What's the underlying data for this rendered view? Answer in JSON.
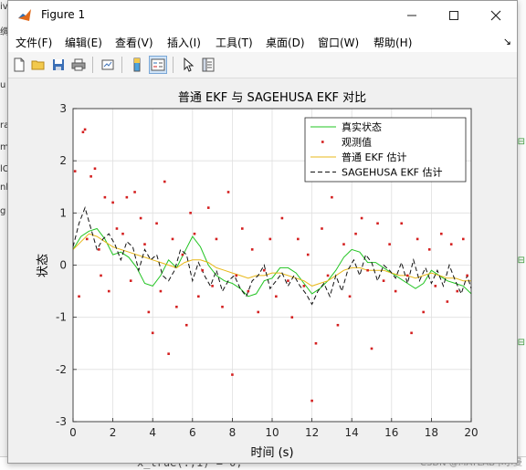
{
  "window": {
    "title": "Figure 1"
  },
  "menu": {
    "items": [
      "文件(F)",
      "编辑(E)",
      "查看(V)",
      "插入(I)",
      "工具(T)",
      "桌面(D)",
      "窗口(W)",
      "帮助(H)"
    ]
  },
  "toolbar": {
    "buttons": [
      "new-figure-icon",
      "open-folder-icon",
      "save-icon",
      "print-icon",
      "link-icon",
      "colorbar-icon",
      "legend-icon",
      "pointer-icon",
      "property-inspector-icon"
    ]
  },
  "background": {
    "code_text": "x_true(:,1) = 0;",
    "watermark": "CSDN @MATLAB卡尔曼",
    "left_chars": [
      "iv",
      "绸",
      "u",
      "ra",
      "m",
      "lC",
      "nk",
      "g"
    ]
  },
  "chart_data": {
    "type": "line",
    "title": "普通 EKF 与 SAGEHUSA EKF 对比",
    "xlabel": "时间 (s)",
    "ylabel": "状态",
    "xlim": [
      0,
      20
    ],
    "ylim": [
      -3,
      3
    ],
    "xticks": [
      0,
      2,
      4,
      6,
      8,
      10,
      12,
      14,
      16,
      18,
      20
    ],
    "yticks": [
      -3,
      -2,
      -1,
      0,
      1,
      2,
      3
    ],
    "grid": true,
    "legend_position": "top-right",
    "series": [
      {
        "name": "真实状态",
        "style": "line",
        "color": "#22c422",
        "x": [
          0,
          0.4,
          0.8,
          1.2,
          1.6,
          2,
          2.4,
          2.8,
          3.2,
          3.6,
          4,
          4.4,
          4.8,
          5.2,
          5.6,
          6,
          6.4,
          6.8,
          7.2,
          7.6,
          8,
          8.4,
          8.8,
          9.2,
          9.6,
          10,
          10.4,
          10.8,
          11.2,
          11.6,
          12,
          12.4,
          12.8,
          13.2,
          13.6,
          14,
          14.4,
          14.8,
          15.2,
          15.6,
          16,
          16.4,
          16.8,
          17.2,
          17.6,
          18,
          18.4,
          18.8,
          19.2,
          19.6,
          20
        ],
        "y": [
          0.3,
          0.55,
          0.65,
          0.7,
          0.5,
          0.2,
          0.25,
          0.15,
          -0.05,
          -0.35,
          -0.4,
          -0.2,
          0.1,
          -0.05,
          0.25,
          0.55,
          0.35,
          0.0,
          -0.2,
          -0.3,
          -0.35,
          -0.45,
          -0.6,
          -0.55,
          -0.3,
          -0.25,
          -0.05,
          -0.05,
          -0.15,
          -0.35,
          -0.55,
          -0.45,
          -0.3,
          -0.1,
          0.15,
          0.3,
          0.25,
          0.05,
          0.05,
          -0.05,
          -0.15,
          -0.25,
          -0.35,
          -0.45,
          -0.35,
          -0.1,
          -0.2,
          -0.3,
          -0.35,
          -0.4,
          -0.55
        ]
      },
      {
        "name": "观测值",
        "style": "dots",
        "color": "#d42020",
        "x": [
          0.1,
          0.3,
          0.5,
          0.6,
          0.7,
          0.9,
          1.1,
          1.3,
          1.4,
          1.6,
          1.8,
          2.0,
          2.2,
          2.5,
          2.7,
          2.9,
          3.1,
          3.4,
          3.6,
          3.8,
          4.0,
          4.2,
          4.4,
          4.6,
          4.8,
          5.0,
          5.2,
          5.5,
          5.7,
          5.9,
          6.1,
          6.3,
          6.5,
          6.8,
          7.0,
          7.2,
          7.5,
          7.8,
          8.0,
          8.2,
          8.5,
          8.8,
          9.0,
          9.3,
          9.6,
          9.9,
          10.2,
          10.5,
          10.8,
          11.0,
          11.3,
          11.6,
          11.8,
          12.0,
          12.2,
          12.5,
          12.8,
          13.0,
          13.3,
          13.6,
          13.9,
          14.2,
          14.5,
          14.8,
          15.0,
          15.3,
          15.6,
          15.9,
          16.2,
          16.5,
          16.8,
          17.0,
          17.3,
          17.6,
          17.9,
          18.2,
          18.5,
          18.8,
          19.0,
          19.3,
          19.6,
          19.8
        ],
        "y": [
          1.8,
          -0.6,
          2.55,
          2.6,
          0.5,
          1.7,
          1.85,
          0.3,
          -0.2,
          1.3,
          -0.5,
          1.2,
          0.7,
          0.6,
          1.3,
          -0.3,
          1.4,
          0.9,
          0.4,
          -0.9,
          -1.3,
          0.8,
          -0.5,
          1.6,
          -1.7,
          0.5,
          -0.8,
          0.2,
          -1.15,
          1.0,
          0.6,
          -0.6,
          -0.1,
          1.1,
          -0.4,
          0.5,
          -0.8,
          1.4,
          -2.1,
          -0.2,
          0.7,
          -0.5,
          0.3,
          -0.9,
          -0.1,
          0.5,
          -0.6,
          0.9,
          -0.3,
          -1.0,
          0.5,
          -0.4,
          0.2,
          -2.6,
          -1.5,
          0.7,
          -0.2,
          1.3,
          -1.15,
          0.4,
          -0.6,
          0.6,
          0.9,
          -0.1,
          -1.6,
          0.8,
          -0.3,
          0.4,
          -0.5,
          0.8,
          -0.2,
          -1.3,
          0.5,
          -0.9,
          0.3,
          -0.4,
          0.6,
          -0.7,
          0.4,
          -0.5,
          0.5,
          -0.2
        ]
      },
      {
        "name": "普通 EKF 估计",
        "style": "line",
        "color": "#e8b818",
        "x": [
          0,
          0.4,
          0.8,
          1.2,
          1.6,
          2,
          2.4,
          2.8,
          3.2,
          3.6,
          4,
          4.4,
          4.8,
          5.2,
          5.6,
          6,
          6.4,
          6.8,
          7.2,
          7.6,
          8,
          8.4,
          8.8,
          9.2,
          9.6,
          10,
          10.4,
          10.8,
          11.2,
          11.6,
          12,
          12.4,
          12.8,
          13.2,
          13.6,
          14,
          14.4,
          14.8,
          15.2,
          15.6,
          16,
          16.4,
          16.8,
          17.2,
          17.6,
          18,
          18.4,
          18.8,
          19.2,
          19.6,
          20
        ],
        "y": [
          0.3,
          0.45,
          0.6,
          0.55,
          0.45,
          0.35,
          0.3,
          0.25,
          0.2,
          0.15,
          0.1,
          0.05,
          0.0,
          -0.05,
          0.05,
          0.1,
          0.1,
          0.05,
          -0.05,
          -0.1,
          -0.15,
          -0.2,
          -0.25,
          -0.2,
          -0.2,
          -0.15,
          -0.15,
          -0.2,
          -0.25,
          -0.3,
          -0.4,
          -0.35,
          -0.3,
          -0.2,
          -0.1,
          -0.05,
          -0.05,
          -0.1,
          -0.1,
          -0.1,
          -0.15,
          -0.2,
          -0.2,
          -0.25,
          -0.2,
          -0.15,
          -0.2,
          -0.25,
          -0.25,
          -0.3,
          -0.3
        ]
      },
      {
        "name": "SAGEHUSA EKF 估计",
        "style": "dashed",
        "color": "#111111",
        "x": [
          0,
          0.3,
          0.6,
          0.9,
          1.2,
          1.5,
          1.8,
          2.1,
          2.4,
          2.7,
          3.0,
          3.3,
          3.6,
          3.9,
          4.2,
          4.5,
          4.8,
          5.1,
          5.4,
          5.7,
          6.0,
          6.3,
          6.6,
          6.9,
          7.2,
          7.5,
          7.8,
          8.1,
          8.4,
          8.7,
          9.0,
          9.3,
          9.6,
          9.9,
          10.2,
          10.5,
          10.8,
          11.1,
          11.4,
          11.7,
          12.0,
          12.3,
          12.6,
          12.9,
          13.2,
          13.5,
          13.8,
          14.1,
          14.4,
          14.7,
          15.0,
          15.3,
          15.6,
          15.9,
          16.2,
          16.5,
          16.8,
          17.1,
          17.4,
          17.7,
          18.0,
          18.3,
          18.6,
          18.9,
          19.2,
          19.5,
          19.8,
          20
        ],
        "y": [
          0.35,
          0.8,
          1.1,
          0.7,
          0.3,
          0.5,
          0.6,
          0.4,
          0.1,
          0.45,
          0.35,
          -0.1,
          0.3,
          0.1,
          0.2,
          -0.2,
          -0.3,
          -0.1,
          0.3,
          0.2,
          -0.3,
          0.05,
          -0.2,
          -0.4,
          -0.1,
          -0.5,
          -0.3,
          -0.2,
          -0.45,
          -0.6,
          -0.3,
          -0.2,
          0.0,
          -0.45,
          -0.3,
          -0.15,
          -0.4,
          -0.2,
          -0.4,
          -0.55,
          -0.75,
          -0.5,
          -0.35,
          -0.6,
          -0.2,
          -0.5,
          -0.1,
          0.1,
          -0.2,
          0.2,
          0.05,
          -0.3,
          0.0,
          -0.1,
          -0.25,
          0.05,
          -0.35,
          0.1,
          -0.3,
          -0.05,
          -0.35,
          -0.1,
          -0.4,
          0.0,
          -0.3,
          -0.55,
          -0.2,
          -0.45
        ]
      }
    ]
  }
}
